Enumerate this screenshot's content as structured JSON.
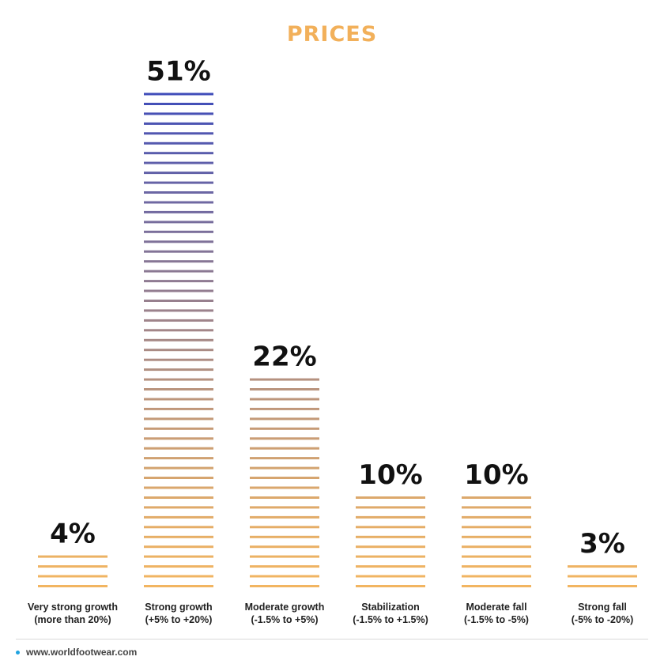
{
  "chart_data": {
    "type": "bar",
    "title": "PRICES",
    "categories": [
      [
        "Very strong growth",
        "(more than 20%)"
      ],
      [
        "Strong growth",
        "(+5% to +20%)"
      ],
      [
        "Moderate growth",
        "(-1.5% to +5%)"
      ],
      [
        "Stabilization",
        "(-1.5% to +1.5%)"
      ],
      [
        "Moderate fall",
        "(-1.5% to -5%)"
      ],
      [
        "Strong fall",
        "(-5% to -20%)"
      ]
    ],
    "values": [
      4,
      51,
      22,
      10,
      10,
      3
    ],
    "value_labels": [
      "4%",
      "51%",
      "22%",
      "10%",
      "10%",
      "3%"
    ],
    "unit": "%",
    "ylim": [
      0,
      51
    ],
    "grid": false,
    "legend": "none",
    "colors": {
      "title": "#F2B05A",
      "stripe_low": "#F2B561",
      "stripe_high": "#3F4CB9"
    }
  },
  "footer": {
    "source": "www.worldfootwear.com",
    "dot_color": "#1FA3E0"
  }
}
